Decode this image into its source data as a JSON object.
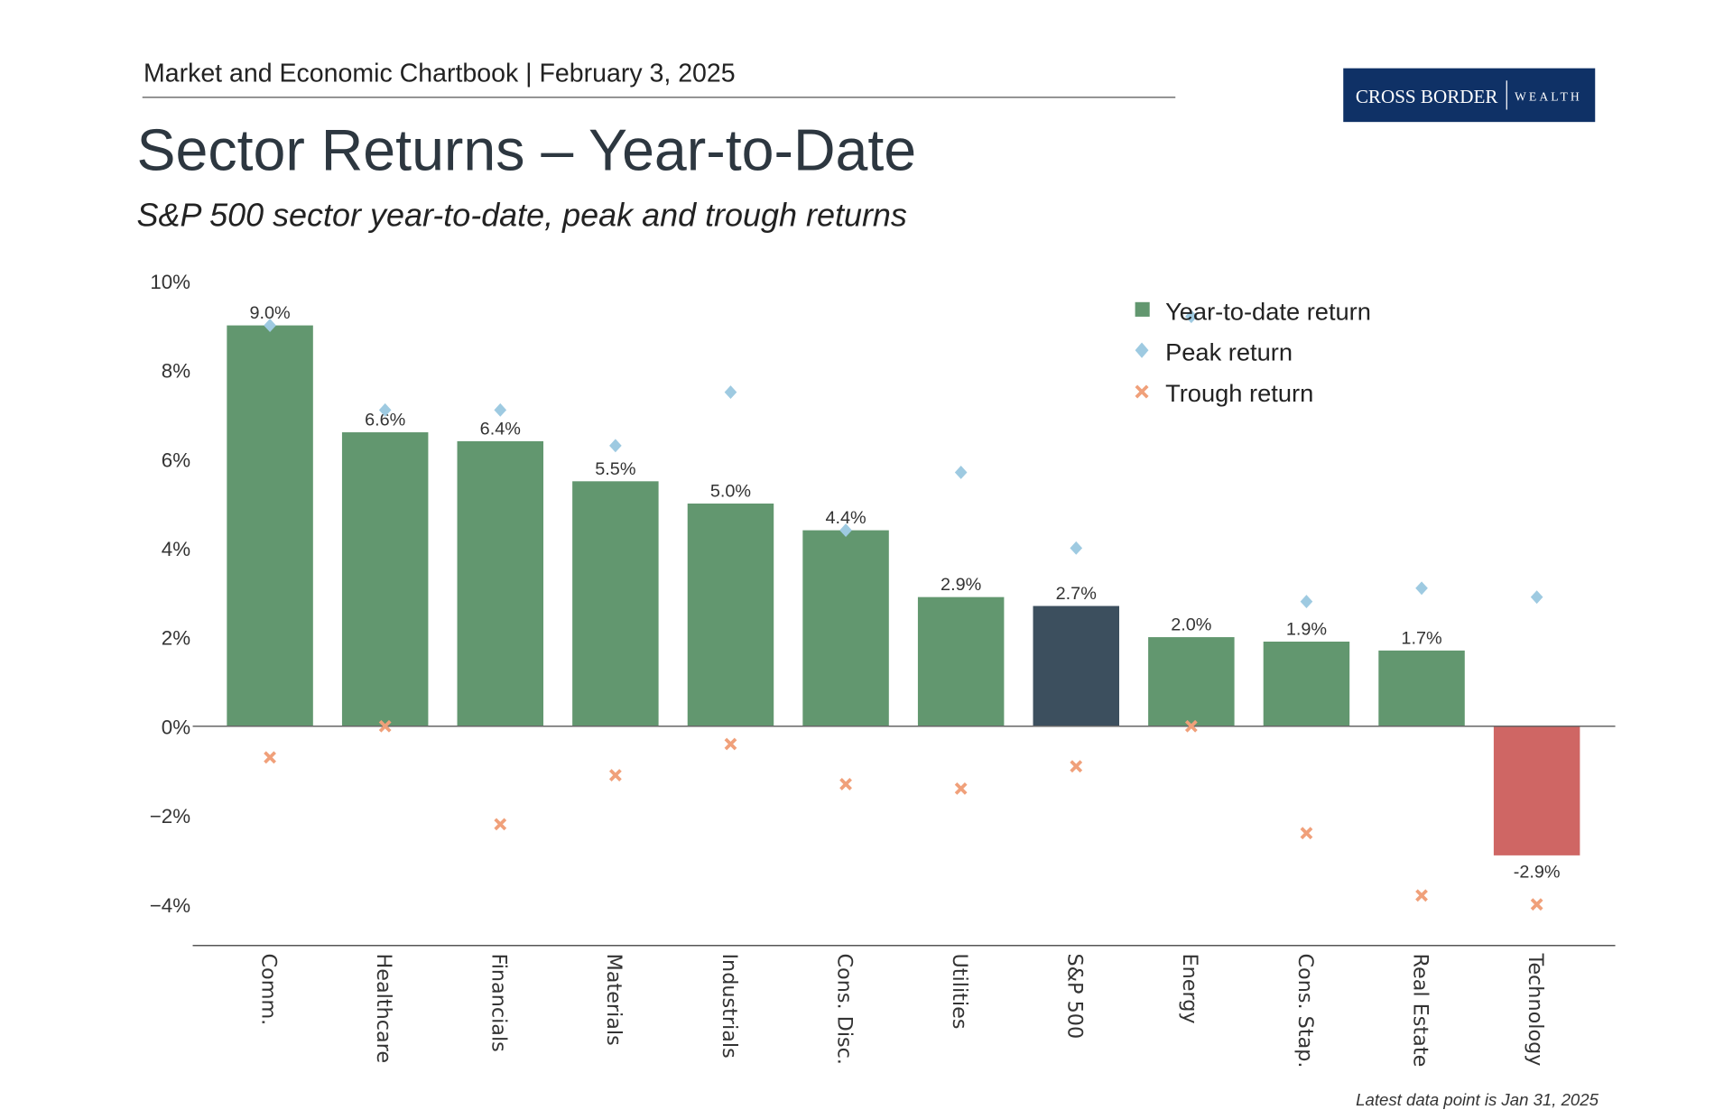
{
  "header": {
    "chartbook": "Market and Economic Chartbook | February 3, 2025",
    "logo_left": "CROSS BORDER",
    "logo_right": "WEALTH",
    "logo_color": "#0f3166"
  },
  "footer": {
    "note": "Latest data point is Jan 31, 2025"
  },
  "chart_data": {
    "type": "bar",
    "title": "Sector Returns – Year-to-Date",
    "subtitle": "S&P 500 sector year-to-date, peak and trough returns",
    "categories": [
      "Comm.",
      "Healthcare",
      "Financials",
      "Materials",
      "Industrials",
      "Cons. Disc.",
      "Utilities",
      "S&P 500",
      "Energy",
      "Cons. Stap.",
      "Real Estate",
      "Technology"
    ],
    "series": [
      {
        "name": "Year-to-date return",
        "type": "bar",
        "values": [
          9.0,
          6.6,
          6.4,
          5.5,
          5.0,
          4.4,
          2.9,
          2.7,
          2.0,
          1.9,
          1.7,
          -2.9
        ],
        "labels": [
          "9.0%",
          "6.6%",
          "6.4%",
          "5.5%",
          "5.0%",
          "4.4%",
          "2.9%",
          "2.7%",
          "2.0%",
          "1.9%",
          "1.7%",
          "-2.9%"
        ]
      },
      {
        "name": "Peak return",
        "type": "scatter",
        "marker": "diamond",
        "values": [
          9.0,
          7.1,
          7.1,
          6.3,
          7.5,
          4.4,
          5.7,
          4.0,
          9.2,
          2.8,
          3.1,
          2.9
        ]
      },
      {
        "name": "Trough return",
        "type": "scatter",
        "marker": "x",
        "values": [
          -0.7,
          0.0,
          -2.2,
          -1.1,
          -0.4,
          -1.3,
          -1.4,
          -0.9,
          0.0,
          -2.4,
          -3.8,
          -4.0
        ]
      }
    ],
    "yticks": [
      10,
      8,
      6,
      4,
      2,
      0,
      -2,
      -4
    ],
    "ytick_labels": [
      "10%",
      "8%",
      "6%",
      "4%",
      "2%",
      "0%",
      "−2%",
      "−4%"
    ],
    "ylim": [
      -4.9,
      10
    ],
    "grid": false,
    "legend_placement": "top-right",
    "colors": {
      "bar": "#62976f",
      "benchmark_bar": "#3c4f5e",
      "negative_bar": "#cf6664",
      "peak": "#9ecae1",
      "trough": "#f0a07a"
    }
  }
}
